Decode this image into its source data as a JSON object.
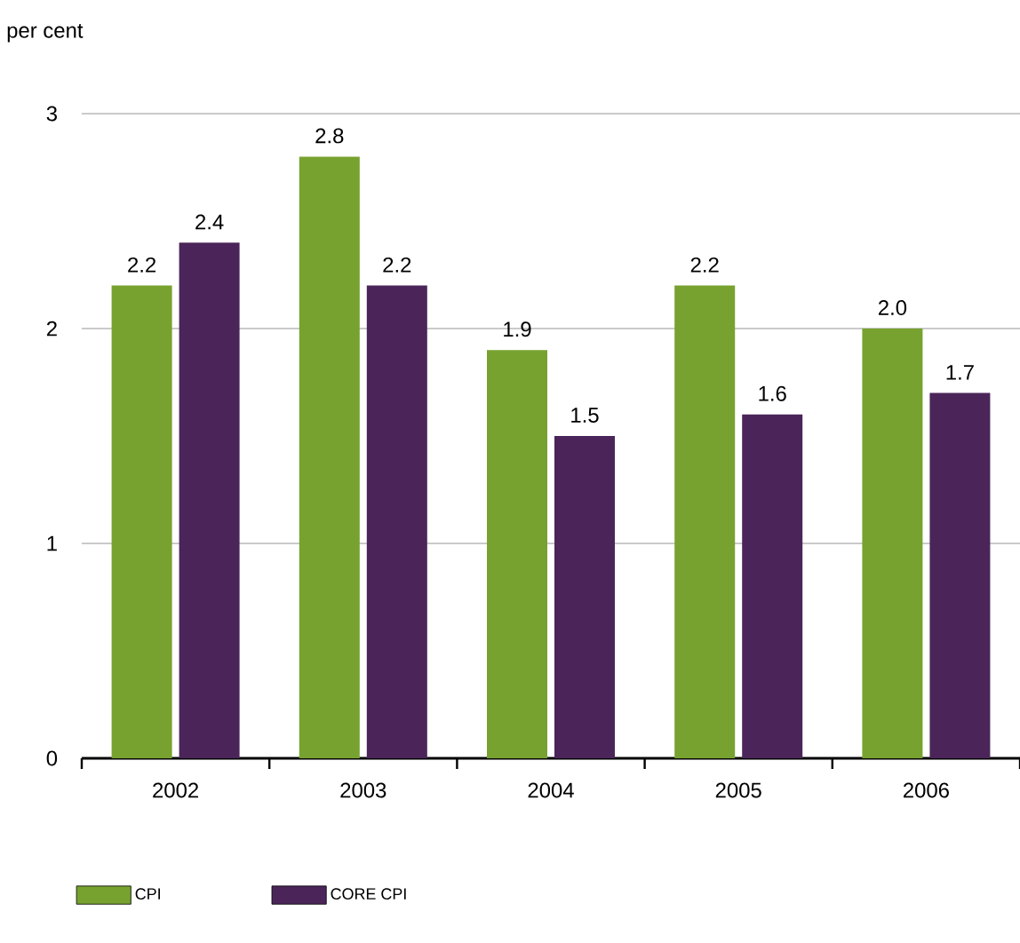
{
  "chart_data": {
    "type": "bar",
    "ylabel": "per cent",
    "categories": [
      "2002",
      "2003",
      "2004",
      "2005",
      "2006"
    ],
    "series": [
      {
        "name": "CPI",
        "color": "#77a22f",
        "values": [
          2.2,
          2.8,
          1.9,
          2.2,
          2.0
        ],
        "value_labels": [
          "2.2",
          "2.8",
          "1.9",
          "2.2",
          "2.0"
        ]
      },
      {
        "name": "CORE CPI",
        "color": "#4b2559",
        "values": [
          2.4,
          2.2,
          1.5,
          1.6,
          1.7
        ],
        "value_labels": [
          "2.4",
          "2.2",
          "1.5",
          "1.6",
          "1.7"
        ]
      }
    ],
    "ylim": [
      0,
      3
    ],
    "yticks": [
      0,
      1,
      2,
      3
    ],
    "grid": "y",
    "legend": "bottom"
  }
}
